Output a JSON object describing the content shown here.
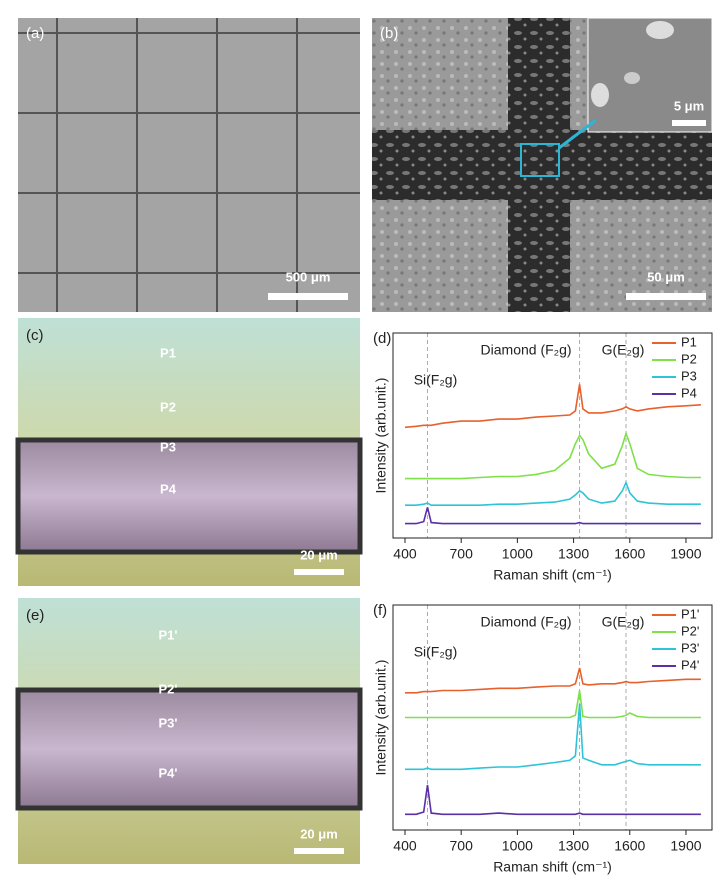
{
  "panels": {
    "a": {
      "label": "(a)",
      "scale": "500 μm"
    },
    "b": {
      "label": "(b)",
      "inset_scale": "5 μm",
      "scale": "50 μm"
    },
    "c": {
      "label": "(c)",
      "points": [
        "P1",
        "P2",
        "P3",
        "P4"
      ],
      "scale": "20 μm"
    },
    "e": {
      "label": "(e)",
      "points": [
        "P1'",
        "P2'",
        "P3'",
        "P4'"
      ],
      "scale": "20 μm"
    }
  },
  "chart_data": [
    {
      "type": "line",
      "panel_label": "(d)",
      "xlabel": "Raman shift (cm⁻¹)",
      "ylabel": "Intensity (arb.unit.)",
      "annotations": [
        "Diamond (F₂g)",
        "G(E₂g)",
        "Si(F₂g)"
      ],
      "ref_lines": [
        520,
        1332,
        1580
      ],
      "xlim": [
        336,
        2039
      ],
      "xticks": [
        400,
        700,
        1000,
        1300,
        1600,
        1900
      ],
      "ylim": [
        0,
        100
      ],
      "x": [
        400,
        460,
        500,
        520,
        540,
        600,
        700,
        800,
        900,
        1000,
        1100,
        1200,
        1280,
        1310,
        1332,
        1350,
        1380,
        1450,
        1520,
        1560,
        1580,
        1600,
        1640,
        1700,
        1800,
        1900,
        1980
      ],
      "series": [
        {
          "name": "P1",
          "color": "#e8602c",
          "values": [
            54,
            54.5,
            55,
            55,
            55,
            56,
            57,
            57,
            58,
            58,
            59,
            59.5,
            60,
            62,
            75,
            63,
            61,
            61,
            62,
            63,
            64,
            63,
            62,
            63,
            64,
            64.5,
            65
          ]
        },
        {
          "name": "P2",
          "color": "#7ee04a",
          "values": [
            29,
            29,
            29,
            29,
            29,
            29,
            29,
            29.5,
            30,
            30,
            31,
            33,
            39,
            46,
            50,
            48,
            41,
            34,
            36,
            45,
            51,
            46,
            34,
            31,
            30,
            29.5,
            29.5
          ]
        },
        {
          "name": "P3",
          "color": "#2ec4d8",
          "values": [
            16,
            16,
            16.5,
            17,
            16,
            16,
            16,
            16,
            16.5,
            16.5,
            17,
            17.5,
            19,
            21,
            23,
            22,
            19,
            17,
            18,
            23,
            27,
            22,
            18,
            17,
            16.5,
            16.5,
            16.5
          ]
        },
        {
          "name": "P4",
          "color": "#5a2fa8",
          "values": [
            7,
            7,
            8,
            15,
            7.5,
            7,
            7,
            7,
            7,
            7,
            7,
            7,
            7,
            7,
            7.5,
            7,
            7,
            7,
            7,
            7,
            7,
            7,
            7,
            7,
            7,
            7,
            7
          ]
        }
      ]
    },
    {
      "type": "line",
      "panel_label": "(f)",
      "xlabel": "Raman shift (cm⁻¹)",
      "ylabel": "Intensity (arb.unit.)",
      "annotations": [
        "Diamond (F₂g)",
        "G(E₂g)",
        "Si(F₂g)"
      ],
      "ref_lines": [
        520,
        1332,
        1580
      ],
      "xlim": [
        336,
        2039
      ],
      "xticks": [
        400,
        700,
        1000,
        1300,
        1600,
        1900
      ],
      "ylim": [
        0,
        100
      ],
      "x": [
        400,
        460,
        500,
        520,
        540,
        600,
        700,
        800,
        900,
        1000,
        1100,
        1200,
        1280,
        1310,
        1332,
        1350,
        1380,
        1450,
        1520,
        1560,
        1580,
        1600,
        1640,
        1700,
        1800,
        1900,
        1980
      ],
      "series": [
        {
          "name": "P1'",
          "color": "#e8602c",
          "values": [
            61,
            61,
            61.5,
            61.5,
            61.5,
            62,
            62,
            62.5,
            63,
            63,
            63.5,
            64,
            64,
            65,
            72,
            65,
            64.5,
            65,
            65,
            65.5,
            66,
            65.5,
            65.5,
            66,
            66.5,
            67,
            67
          ]
        },
        {
          "name": "P2'",
          "color": "#7ee04a",
          "values": [
            50,
            50,
            50,
            50,
            50,
            50,
            50,
            50,
            50,
            50,
            50,
            50,
            50,
            51,
            62,
            50.5,
            50,
            50,
            50,
            50.5,
            51,
            52,
            50.5,
            50,
            50,
            50,
            50
          ]
        },
        {
          "name": "P3'",
          "color": "#2ec4d8",
          "values": [
            27,
            27,
            27,
            27.5,
            27,
            27,
            27,
            27.5,
            28,
            28,
            29,
            30,
            31,
            33,
            56,
            32,
            31,
            29,
            29,
            30,
            30.5,
            31,
            29.5,
            29,
            29,
            29,
            29
          ]
        },
        {
          "name": "P4'",
          "color": "#5a2fa8",
          "values": [
            7,
            7,
            8,
            20,
            7.5,
            7,
            7,
            7,
            7.5,
            7,
            7,
            7,
            7,
            7,
            7.5,
            7,
            7,
            7,
            7,
            7,
            7,
            7,
            7,
            7,
            7,
            7,
            7
          ]
        }
      ]
    }
  ]
}
